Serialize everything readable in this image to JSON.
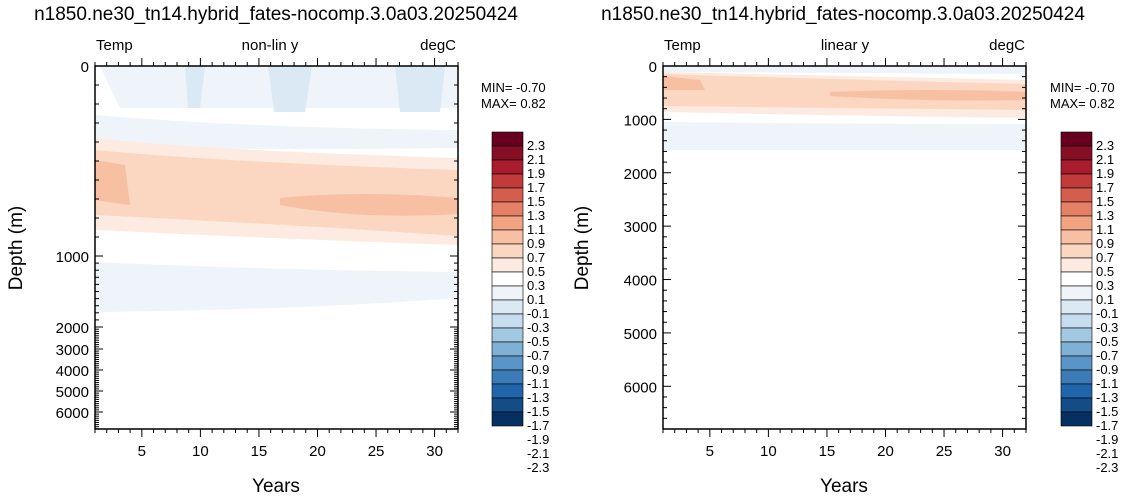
{
  "palette": [
    "#053061",
    "#134c87",
    "#2166ac",
    "#3a7bb8",
    "#5b95c7",
    "#7fb1d4",
    "#a3c8e2",
    "#c5ddee",
    "#dae9f3",
    "#eef4f9",
    "#ffffff",
    "#fdebe1",
    "#fbd6c1",
    "#f7c0a2",
    "#f2a482",
    "#e58066",
    "#d35e4d",
    "#c23b3b",
    "#a81c2d",
    "#850f25",
    "#67001f"
  ],
  "colorbar_labels": [
    "2.3",
    "2.1",
    "1.9",
    "1.7",
    "1.5",
    "1.3",
    "1.1",
    "0.9",
    "0.7",
    "0.5",
    "0.3",
    "0.1",
    "-0.1",
    "-0.3",
    "-0.5",
    "-0.7",
    "-0.9",
    "-1.1",
    "-1.3",
    "-1.5",
    "-1.7",
    "-1.9",
    "-2.1",
    "-2.3"
  ],
  "chart_data": [
    {
      "type": "heatmap",
      "title": "n1850.ne30_tn14.hybrid_fates-nocomp.3.0a03.20250424",
      "header_left": "Temp",
      "header_center": "non-lin y",
      "header_right": "degC",
      "xlabel": "Years",
      "ylabel": "Depth (m)",
      "xlim": [
        1,
        32
      ],
      "x_ticks": [
        "5",
        "10",
        "15",
        "20",
        "25",
        "30"
      ],
      "y_ticks": [
        "0",
        "1000",
        "2000",
        "3000",
        "4000",
        "5000",
        "6000"
      ],
      "y_scale": "non-linear",
      "min_text": "MIN= -0.70",
      "max_text": "MAX=  0.82",
      "contour_levels": [
        -2.3,
        -2.1,
        -1.9,
        -1.7,
        -1.5,
        -1.3,
        -1.1,
        -0.9,
        -0.7,
        -0.5,
        -0.3,
        -0.1,
        0.1,
        0.3,
        0.5,
        0.7,
        0.9,
        1.1,
        1.3,
        1.5,
        1.7,
        1.9,
        2.1,
        2.3
      ],
      "min": -0.7,
      "max": 0.82
    },
    {
      "type": "heatmap",
      "title": "n1850.ne30_tn14.hybrid_fates-nocomp.3.0a03.20250424",
      "header_left": "Temp",
      "header_center": "linear y",
      "header_right": "degC",
      "xlabel": "Years",
      "ylabel": "Depth (m)",
      "xlim": [
        1,
        32
      ],
      "ylim": [
        0,
        6800
      ],
      "x_ticks": [
        "5",
        "10",
        "15",
        "20",
        "25",
        "30"
      ],
      "y_ticks": [
        "0",
        "1000",
        "2000",
        "3000",
        "4000",
        "5000",
        "6000"
      ],
      "y_scale": "linear",
      "min_text": "MIN= -0.70",
      "max_text": "MAX=  0.82",
      "contour_levels": [
        -2.3,
        -2.1,
        -1.9,
        -1.7,
        -1.5,
        -1.3,
        -1.1,
        -0.9,
        -0.7,
        -0.5,
        -0.3,
        -0.1,
        0.1,
        0.3,
        0.5,
        0.7,
        0.9,
        1.1,
        1.3,
        1.5,
        1.7,
        1.9,
        2.1,
        2.3
      ],
      "min": -0.7,
      "max": 0.82
    }
  ]
}
